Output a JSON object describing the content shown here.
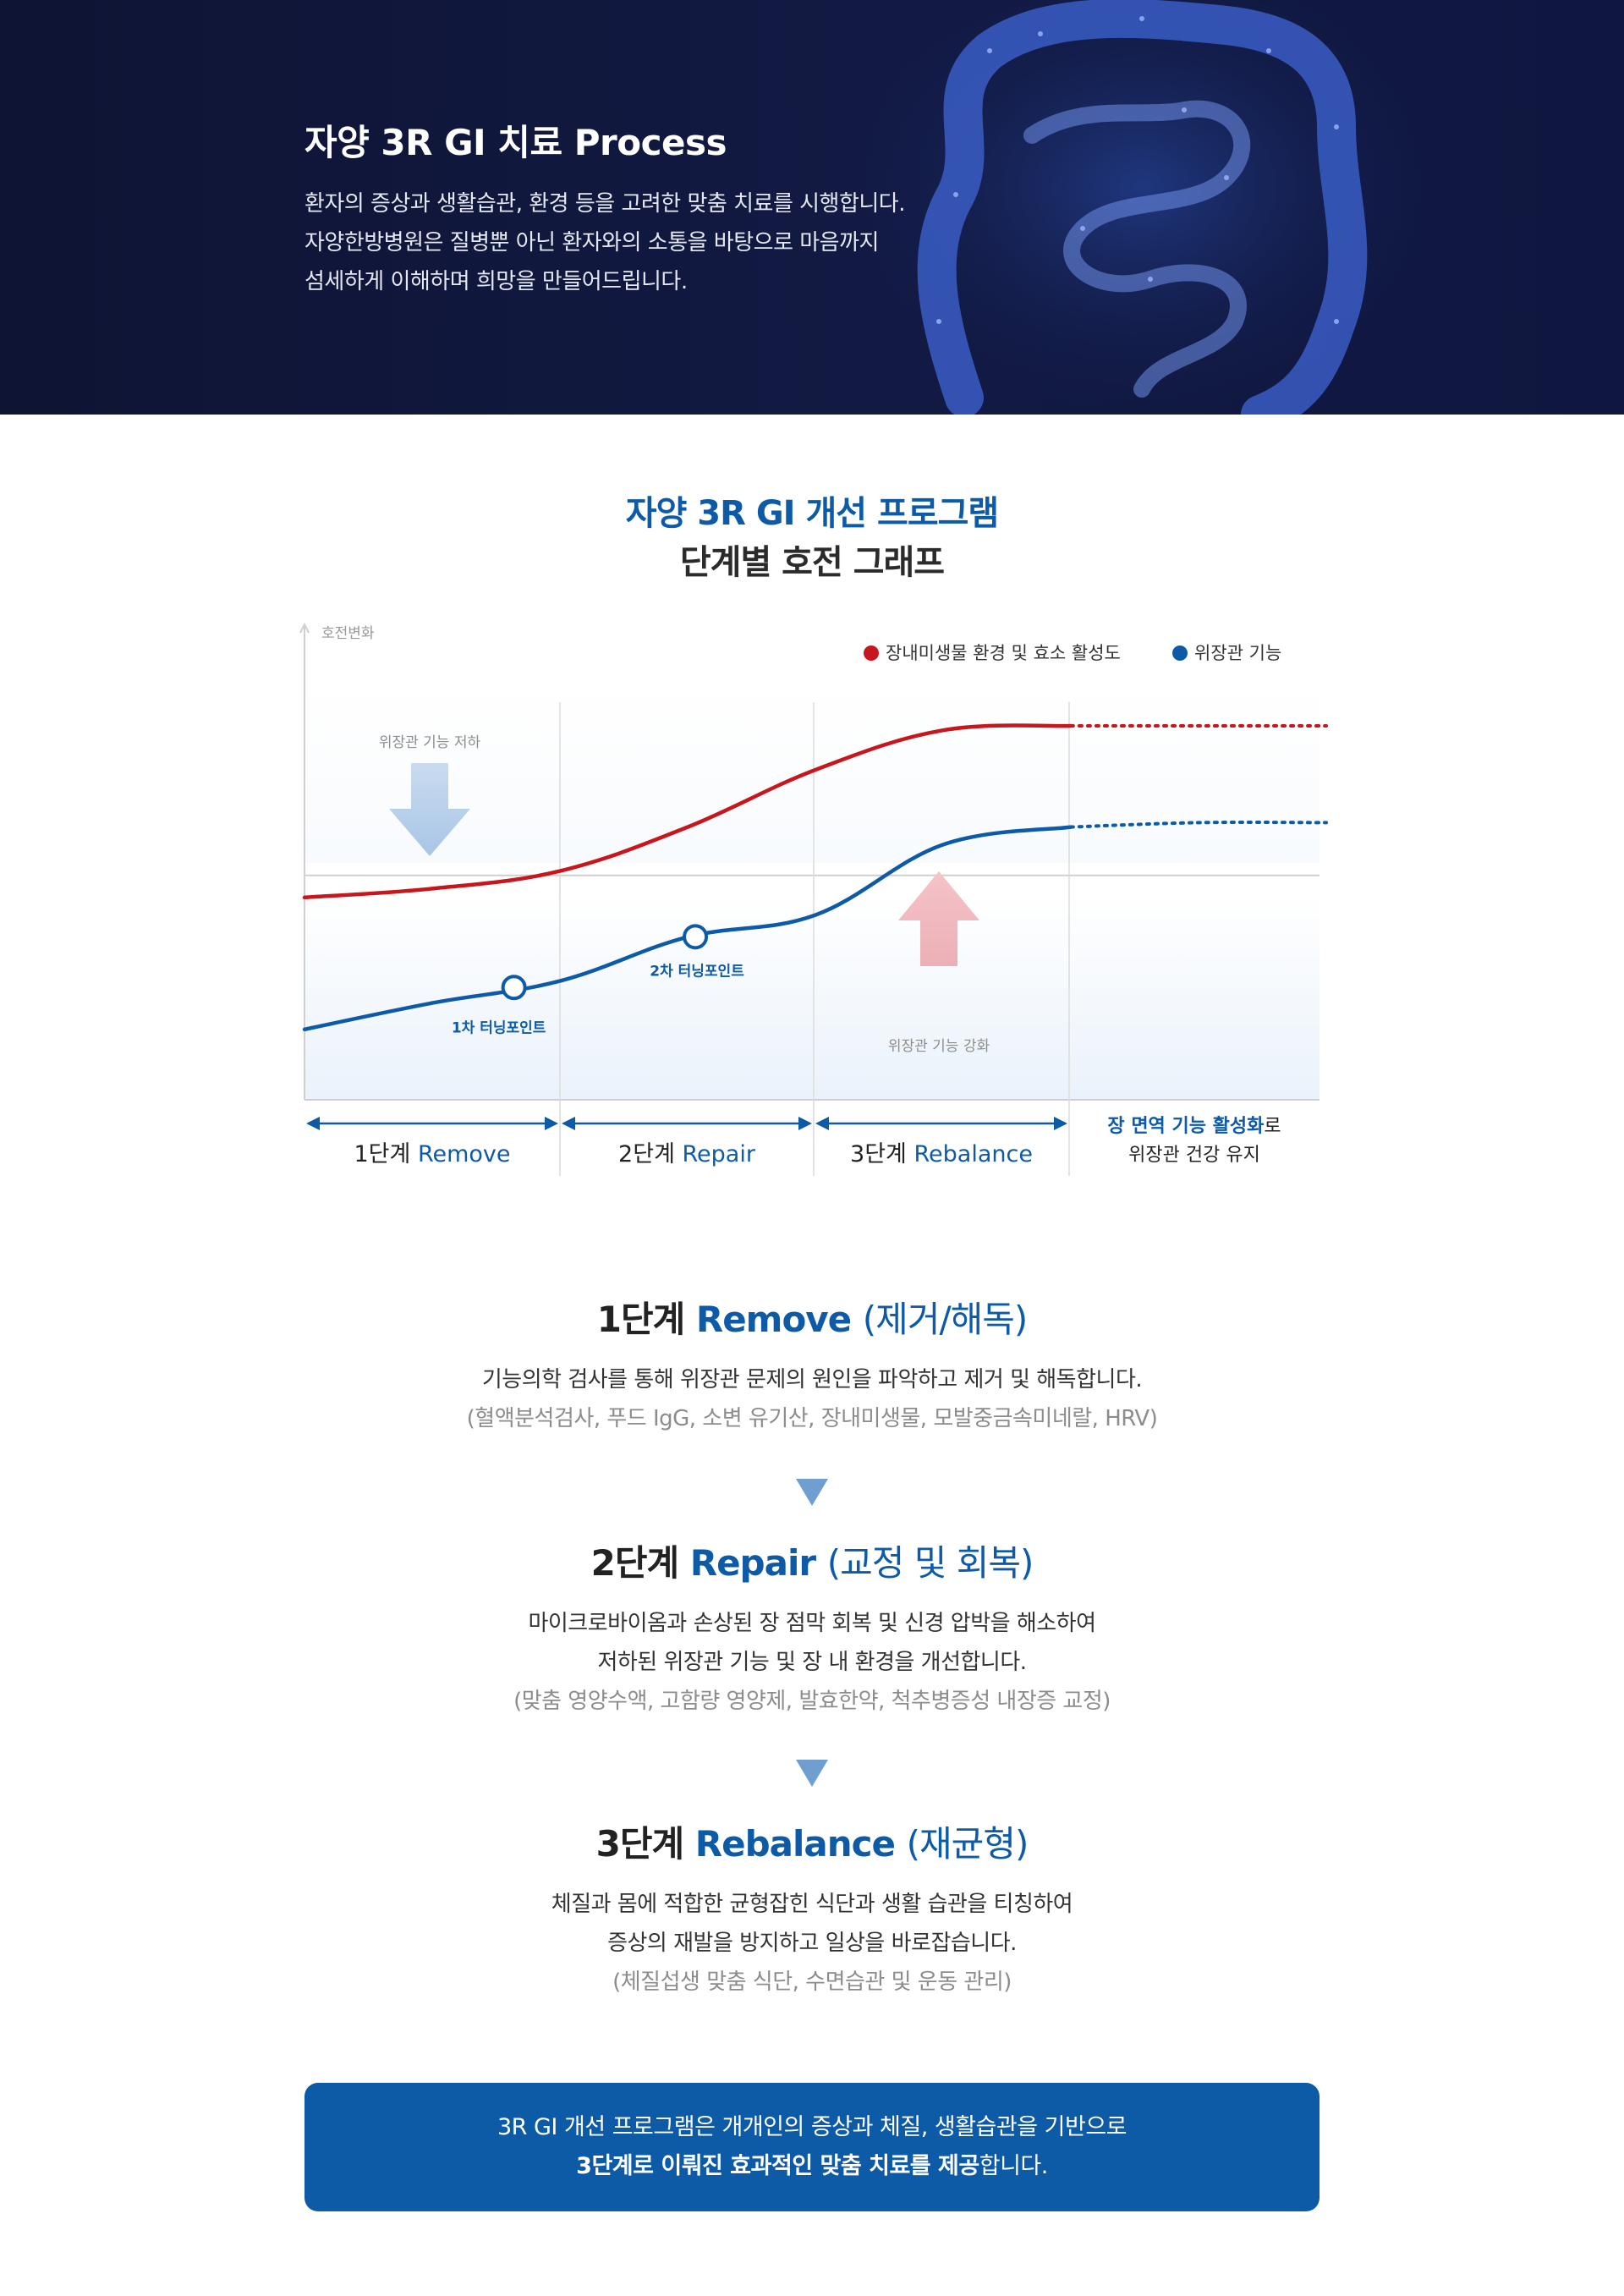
{
  "hero": {
    "title": "자양 3R GI 치료 Process",
    "desc": [
      "환자의 증상과 생활습관, 환경 등을 고려한 맞춤 치료를 시행합니다.",
      "자양한방병원은 질병뿐 아닌 환자와의 소통을 바탕으로 마음까지",
      "섬세하게 이해하며 희망을 만들어드립니다."
    ]
  },
  "section": {
    "title_line1": "자양 3R GI 개선 프로그램",
    "title_line2": "단계별 호전 그래프"
  },
  "chart_data": {
    "type": "line",
    "ylabel": "호전변화",
    "legend_position": "top-right",
    "legend": [
      {
        "name": "장내미생물 환경 및 효소 활성도",
        "color": "#c8161d"
      },
      {
        "name": "위장관 기능",
        "color": "#0d5aa7"
      }
    ],
    "phases": [
      "1단계 Remove",
      "2단계 Repair",
      "3단계 Rebalance"
    ],
    "phase_parts": [
      {
        "num": "1단계 ",
        "en": "Remove"
      },
      {
        "num": "2단계 ",
        "en": "Repair"
      },
      {
        "num": "3단계 ",
        "en": "Rebalance"
      }
    ],
    "final_label": {
      "line1_strong": "장 면역 기능 활성화",
      "line1_rest": "로",
      "line2": "위장관 건강 유지"
    },
    "x": [
      0,
      0.5,
      1,
      1.5,
      2,
      2.5,
      3,
      3.5,
      4
    ],
    "series": [
      {
        "name": "장내미생물 환경 및 효소 활성도",
        "values": [
          46,
          48,
          52,
          62,
          75,
          84,
          85,
          85,
          85
        ]
      },
      {
        "name": "위장관 기능",
        "values": [
          16,
          22,
          27,
          37,
          42,
          58,
          62,
          63,
          63
        ]
      }
    ],
    "dotted_from_x": 3,
    "baseline_y": 51,
    "turning_points": [
      {
        "label": "1차 터닝포인트",
        "x": 0.82,
        "series": 1
      },
      {
        "label": "2차 터닝포인트",
        "x": 1.53,
        "series": 1
      }
    ],
    "annotations": {
      "decline": "위장관 기능 저하",
      "enhance": "위장관 기능 강화"
    },
    "ylim": [
      0,
      100
    ],
    "grid": "vertical-phase-lines"
  },
  "stages": [
    {
      "num": "1단계 ",
      "en": "Remove",
      "paren": "(제거/해독)",
      "desc": [
        "기능의학 검사를 통해 위장관 문제의 원인을 파악하고 제거 및 해독합니다."
      ],
      "sub": "(혈액분석검사, 푸드 IgG, 소변 유기산, 장내미생물, 모발중금속미네랄, HRV)"
    },
    {
      "num": "2단계 ",
      "en": "Repair",
      "paren": "(교정 및 회복)",
      "desc": [
        "마이크로바이옴과 손상된 장 점막 회복 및 신경 압박을 해소하여",
        "저하된 위장관 기능 및 장 내 환경을 개선합니다."
      ],
      "sub": "(맞춤 영양수액, 고함량 영양제, 발효한약, 척추병증성 내장증 교정)"
    },
    {
      "num": "3단계 ",
      "en": "Rebalance",
      "paren": "(재균형)",
      "desc": [
        "체질과 몸에 적합한 균형잡힌 식단과 생활 습관을 티칭하여",
        "증상의 재발을 방지하고 일상을 바로잡습니다."
      ],
      "sub": "(체질섭생 맞춤 식단, 수면습관 및 운동 관리)"
    }
  ],
  "summary": {
    "line1": "3R GI 개선 프로그램은 개개인의 증상과 체질, 생활습관을 기반으로",
    "line2_strong": "3단계로 이뤄진 효과적인 맞춤 치료를 제공",
    "line2_rest": "합니다."
  }
}
